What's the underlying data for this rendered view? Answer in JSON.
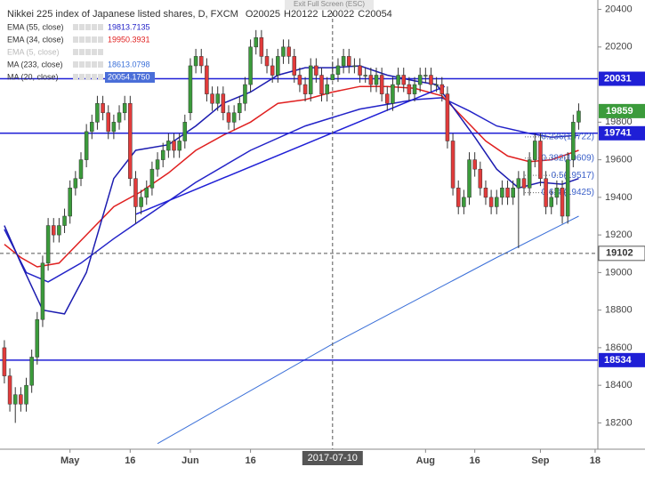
{
  "chart_data": {
    "type": "candlestick",
    "title": "Nikkei 225 index of Japanese listed shares, D, FXCM",
    "ohlc_header": [
      "O20025",
      "H20122",
      "L20022",
      "C20054"
    ],
    "banner": "Exit Full Screen (ESC)",
    "up_color": "#3b9b3b",
    "down_color": "#e23b3b",
    "xlim": [
      -0.8,
      108.5
    ],
    "ylim": [
      18060,
      20450
    ],
    "xticks": [
      {
        "value": 12,
        "label": "May"
      },
      {
        "value": 23,
        "label": "16"
      },
      {
        "value": 34,
        "label": "Jun"
      },
      {
        "value": 45,
        "label": "16"
      },
      {
        "value": 77,
        "label": "Aug"
      },
      {
        "value": 86,
        "label": "16"
      },
      {
        "value": 98,
        "label": "Sep"
      },
      {
        "value": 108,
        "label": "18"
      }
    ],
    "yticks": [
      20400,
      20200,
      19800,
      19600,
      19400,
      19200,
      19000,
      18800,
      18600,
      18400,
      18200
    ],
    "open": [
      18600,
      18450,
      18300,
      18350,
      18300,
      18400,
      18550,
      18750,
      19050,
      19250,
      19200,
      19250,
      19300,
      19450,
      19500,
      19600,
      19750,
      19800,
      19900,
      19850,
      19750,
      19800,
      19850,
      19900,
      19500,
      19350,
      19400,
      19450,
      19550,
      19600,
      19650,
      19700,
      19650,
      19700,
      19850,
      20100,
      20150,
      20100,
      19950,
      19900,
      19950,
      19850,
      19800,
      19850,
      19900,
      20000,
      20200,
      20250,
      20150,
      20100,
      20050,
      20150,
      20200,
      20150,
      20050,
      20000,
      19950,
      20100,
      20050,
      19950,
      20025,
      20054,
      20100,
      20150,
      20100,
      20100,
      20050,
      20050,
      20000,
      20050,
      19950,
      19900,
      20000,
      20050,
      20000,
      19950,
      20000,
      20050,
      20050,
      20000,
      20000,
      19950,
      19700,
      19450,
      19350,
      19400,
      19600,
      19550,
      19450,
      19400,
      19350,
      19400,
      19450,
      19400,
      19450,
      19500,
      19450,
      19600,
      19700,
      19500,
      19350,
      19400,
      19450,
      19300,
      19600,
      19800
    ],
    "high": [
      18640,
      18490,
      18390,
      18390,
      18440,
      18590,
      18790,
      19090,
      19290,
      19290,
      19290,
      19340,
      19490,
      19540,
      19640,
      19790,
      19840,
      19940,
      19940,
      19890,
      19840,
      19890,
      19940,
      19940,
      19540,
      19440,
      19490,
      19590,
      19640,
      19690,
      19740,
      19740,
      19740,
      19840,
      20140,
      20190,
      20190,
      20140,
      19990,
      19990,
      19990,
      19890,
      19890,
      19940,
      20040,
      20240,
      20290,
      20290,
      20190,
      20140,
      20190,
      20240,
      20240,
      20190,
      20090,
      20040,
      20140,
      20140,
      20090,
      20040,
      20122,
      20140,
      20190,
      20190,
      20140,
      20140,
      20090,
      20090,
      20090,
      20090,
      19990,
      20040,
      20090,
      20090,
      20040,
      20040,
      20090,
      20090,
      20090,
      20040,
      20040,
      19990,
      19740,
      19490,
      19440,
      19640,
      19640,
      19590,
      19490,
      19440,
      19440,
      19490,
      19490,
      19490,
      19540,
      19540,
      19640,
      19740,
      19740,
      19540,
      19440,
      19490,
      19490,
      19640,
      19840,
      19900
    ],
    "low": [
      18410,
      18260,
      18200,
      18260,
      18260,
      18360,
      18510,
      18710,
      19010,
      19160,
      19160,
      19210,
      19260,
      19410,
      19460,
      19560,
      19710,
      19760,
      19810,
      19710,
      19710,
      19760,
      19810,
      19460,
      19260,
      19310,
      19360,
      19410,
      19510,
      19560,
      19610,
      19610,
      19610,
      19660,
      19810,
      20060,
      20060,
      19910,
      19860,
      19860,
      19810,
      19760,
      19760,
      19810,
      19860,
      19960,
      20160,
      20110,
      20060,
      20010,
      20010,
      20110,
      20110,
      20010,
      19960,
      19910,
      19910,
      20010,
      19910,
      19910,
      20022,
      20014,
      20060,
      20060,
      20060,
      20010,
      20010,
      19960,
      19960,
      19910,
      19860,
      19860,
      19960,
      19960,
      19910,
      19910,
      19960,
      20010,
      19960,
      19960,
      19910,
      19660,
      19410,
      19310,
      19310,
      19360,
      19510,
      19410,
      19360,
      19310,
      19310,
      19360,
      19360,
      19360,
      19130,
      19410,
      19410,
      19560,
      19460,
      19310,
      19310,
      19360,
      19260,
      19260,
      19560,
      19760
    ],
    "close": [
      18450,
      18300,
      18350,
      18300,
      18400,
      18550,
      18750,
      19050,
      19250,
      19200,
      19250,
      19300,
      19450,
      19500,
      19600,
      19750,
      19800,
      19900,
      19850,
      19750,
      19800,
      19850,
      19900,
      19500,
      19350,
      19400,
      19450,
      19550,
      19600,
      19650,
      19700,
      19650,
      19700,
      19800,
      20100,
      20150,
      20100,
      19950,
      19900,
      19950,
      19850,
      19800,
      19850,
      19900,
      20000,
      20200,
      20250,
      20150,
      20100,
      20050,
      20150,
      20200,
      20150,
      20050,
      20000,
      19950,
      20100,
      20050,
      19950,
      20000,
      20054,
      20100,
      20150,
      20100,
      20100,
      20050,
      20050,
      20000,
      20050,
      19950,
      19900,
      20000,
      20050,
      20000,
      19950,
      20000,
      20050,
      20050,
      20000,
      20000,
      19950,
      19700,
      19450,
      19350,
      19400,
      19600,
      19550,
      19450,
      19400,
      19350,
      19400,
      19450,
      19400,
      19450,
      19500,
      19450,
      19600,
      19700,
      19500,
      19350,
      19400,
      19450,
      19300,
      19600,
      19800,
      19859
    ],
    "series": [
      {
        "name": "EMA (55, close)",
        "color": "#2323c8",
        "legend_value": {
          "value": 19813.7135,
          "label": "19813.7135"
        },
        "x": [
          0,
          4,
          8,
          14,
          20,
          25,
          35,
          45,
          55,
          65,
          75,
          80,
          85,
          90,
          96,
          100,
          105
        ],
        "values": [
          19230,
          19000,
          18950,
          19050,
          19180,
          19280,
          19480,
          19650,
          19780,
          19870,
          19920,
          19930,
          19860,
          19780,
          19740,
          19720,
          19730
        ]
      },
      {
        "name": "EMA (34, close)",
        "color": "#e02020",
        "legend_value": {
          "value": 19950.3931,
          "label": "19950.3931"
        },
        "x": [
          0,
          3,
          6,
          10,
          15,
          20,
          25,
          30,
          35,
          40,
          45,
          50,
          55,
          60,
          65,
          70,
          75,
          80,
          84,
          88,
          92,
          96,
          100,
          105
        ],
        "values": [
          19150,
          19080,
          19030,
          19050,
          19200,
          19350,
          19430,
          19530,
          19650,
          19730,
          19800,
          19900,
          19920,
          19960,
          19990,
          19990,
          19980,
          19940,
          19820,
          19700,
          19620,
          19590,
          19600,
          19650
        ]
      },
      {
        "name": "EMA (5, close)",
        "hidden": true
      },
      {
        "name": "MA (233, close)",
        "color": "#3a6fd8",
        "legend_value": {
          "value": 18613.0798,
          "label": "18613.0798"
        },
        "x": [
          28,
          60,
          90,
          105
        ],
        "values": [
          18090,
          18620,
          19080,
          19300
        ]
      },
      {
        "name": "MA (20, close)",
        "color": "#1c1cb0",
        "legend_value": {
          "value": 20054.175,
          "label": "20054.1750"
        },
        "x": [
          0,
          3,
          7,
          11,
          15,
          20,
          24,
          30,
          35,
          40,
          45,
          50,
          55,
          60,
          65,
          70,
          75,
          79,
          82,
          86,
          90,
          94,
          98,
          102,
          105
        ],
        "values": [
          19250,
          19050,
          18800,
          18780,
          19000,
          19500,
          19650,
          19680,
          19780,
          19900,
          19960,
          20050,
          20090,
          20090,
          20100,
          20050,
          20020,
          20000,
          19880,
          19720,
          19550,
          19450,
          19480,
          19470,
          19500
        ]
      }
    ],
    "trendline": {
      "color": "#1f1fd6",
      "x": [
        24,
        80.5
      ],
      "values": [
        19310,
        19990
      ]
    },
    "levels": [
      {
        "value": 20031,
        "color": "#1f1fd6"
      },
      {
        "value": 19741,
        "color": "#1f1fd6"
      },
      {
        "value": 18534,
        "color": "#1f1fd6"
      }
    ],
    "last_price": {
      "value": 19859,
      "color": "#3b9b3b"
    },
    "crosshair": {
      "x": 60,
      "date": "2017-07-10",
      "value": 19102
    },
    "fib": [
      {
        "text": "0.236(19722)",
        "value": 19722
      },
      {
        "text": "0.382(19609)",
        "value": 19609
      },
      {
        "text": "0.5(19517)",
        "value": 19517
      },
      {
        "text": "0.618(19425)",
        "value": 19425
      }
    ]
  }
}
